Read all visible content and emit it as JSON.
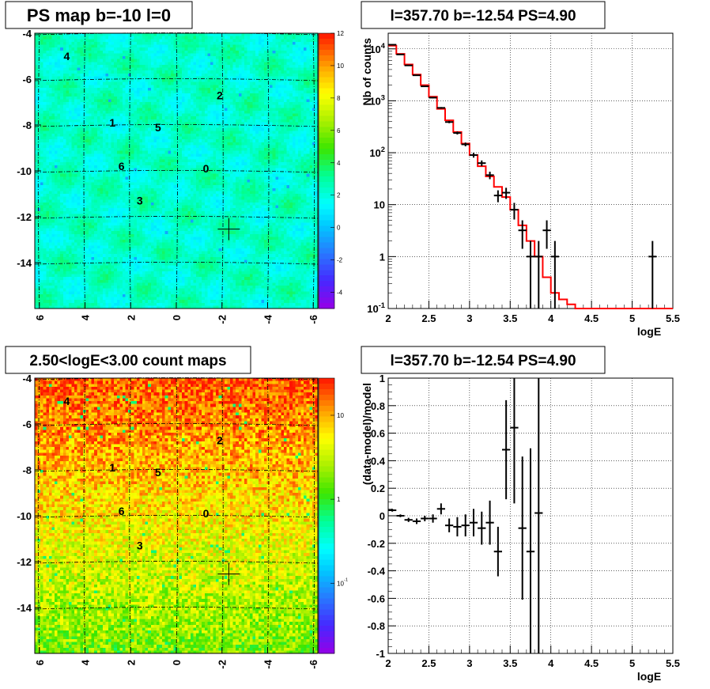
{
  "chart_data": [
    {
      "id": "ps-map",
      "type": "heatmap",
      "title": "PS map b=-10 l=0",
      "x_ticks": [
        "6",
        "4",
        "2",
        "0",
        "-2",
        "-4",
        "-6"
      ],
      "y_ticks": [
        "-4",
        "-6",
        "-8",
        "-10",
        "-12",
        "-14"
      ],
      "xlim": [
        6.2,
        -6.2
      ],
      "ylim": [
        -16,
        -4
      ],
      "colorbar_ticks": [
        "12",
        "10",
        "8",
        "6",
        "4",
        "2",
        "0",
        "-2",
        "-4"
      ],
      "colorbar_range": [
        -5,
        12
      ],
      "sources": [
        {
          "label": "4",
          "l": 4.8,
          "b": -5.0
        },
        {
          "label": "2",
          "l": -1.9,
          "b": -6.7
        },
        {
          "label": "1",
          "l": 2.8,
          "b": -7.9
        },
        {
          "label": "5",
          "l": 0.8,
          "b": -8.1
        },
        {
          "label": "6",
          "l": 2.4,
          "b": -9.8
        },
        {
          "label": "0",
          "l": -1.3,
          "b": -9.9
        },
        {
          "label": "3",
          "l": 1.6,
          "b": -11.3
        }
      ],
      "marker": {
        "l": -2.3,
        "b": -12.54
      }
    },
    {
      "id": "count-spectrum",
      "type": "line",
      "title": "l=357.70 b=-12.54 PS=4.90",
      "xlabel": "logE",
      "ylabel": "Nb of counts",
      "xlim": [
        2.0,
        5.5
      ],
      "ylim": [
        0.1,
        20000
      ],
      "log_y": true,
      "x_ticks": [
        "2",
        "2.5",
        "3",
        "3.5",
        "4",
        "4.5",
        "5",
        "5.5"
      ],
      "y_ticks": [
        "10^{-1}",
        "1",
        "10",
        "10^{2}",
        "10^{3}",
        "10^{4}"
      ],
      "grid": true,
      "series": [
        {
          "kind": "model-histogram",
          "color": "#ff0000",
          "bin_width": 0.1,
          "x": [
            2.0,
            2.1,
            2.2,
            2.3,
            2.4,
            2.5,
            2.6,
            2.7,
            2.8,
            2.9,
            3.0,
            3.1,
            3.2,
            3.3,
            3.4,
            3.5,
            3.6,
            3.7,
            3.8,
            3.9,
            4.0,
            4.1,
            4.2,
            4.3,
            4.4,
            4.5,
            4.6,
            4.7,
            4.8,
            4.9,
            5.0,
            5.1,
            5.2,
            5.3,
            5.4
          ],
          "values": [
            11500,
            8000,
            5000,
            3200,
            2000,
            1200,
            700,
            420,
            250,
            150,
            90,
            55,
            35,
            22,
            14,
            8,
            4,
            2,
            1,
            0.4,
            0.2,
            0.15,
            0.12,
            0.1,
            0.1,
            0.1,
            0.1,
            0.1,
            0.1,
            0.1,
            0.1,
            0.1,
            0.1,
            0.1,
            0.1
          ]
        },
        {
          "kind": "data-points",
          "color": "#000000",
          "x": [
            2.05,
            2.15,
            2.25,
            2.35,
            2.45,
            2.55,
            2.65,
            2.75,
            2.85,
            2.95,
            3.05,
            3.15,
            3.25,
            3.35,
            3.45,
            3.55,
            3.65,
            3.75,
            3.85,
            3.95,
            4.05,
            5.25
          ],
          "values": [
            12000,
            7800,
            4800,
            3100,
            1900,
            1150,
            730,
            390,
            240,
            145,
            90,
            63,
            37,
            15,
            17,
            8,
            3.2,
            1,
            1,
            3.2,
            1,
            1
          ]
        }
      ]
    },
    {
      "id": "count-map",
      "type": "heatmap",
      "title": "2.50<logE<3.00 count maps",
      "x_ticks": [
        "6",
        "4",
        "2",
        "0",
        "-2",
        "-4",
        "-6"
      ],
      "y_ticks": [
        "-4",
        "-6",
        "-8",
        "-10",
        "-12",
        "-14"
      ],
      "xlim": [
        6.2,
        -6.2
      ],
      "ylim": [
        -16,
        -4
      ],
      "log_color": true,
      "colorbar_ticks": [
        "10",
        "1",
        "10^{-1}"
      ],
      "sources": [
        {
          "label": "4",
          "l": 4.8,
          "b": -5.0
        },
        {
          "label": "2",
          "l": -1.9,
          "b": -6.7
        },
        {
          "label": "1",
          "l": 2.8,
          "b": -7.9
        },
        {
          "label": "5",
          "l": 0.8,
          "b": -8.1
        },
        {
          "label": "6",
          "l": 2.4,
          "b": -9.8
        },
        {
          "label": "0",
          "l": -1.3,
          "b": -9.9
        },
        {
          "label": "3",
          "l": 1.6,
          "b": -11.3
        }
      ],
      "marker": {
        "l": -2.3,
        "b": -12.54
      }
    },
    {
      "id": "residuals",
      "type": "scatter",
      "title": "l=357.70 b=-12.54 PS=4.90",
      "xlabel": "logE",
      "ylabel": "(data-model)/model",
      "xlim": [
        2.0,
        5.5
      ],
      "ylim": [
        -1,
        1
      ],
      "x_ticks": [
        "2",
        "2.5",
        "3",
        "3.5",
        "4",
        "4.5",
        "5",
        "5.5"
      ],
      "y_ticks": [
        "-1",
        "-0.8",
        "-0.6",
        "-0.4",
        "-0.2",
        "0",
        "0.2",
        "0.4",
        "0.6",
        "0.8",
        "1"
      ],
      "grid": true,
      "points": {
        "x": [
          2.05,
          2.15,
          2.25,
          2.35,
          2.45,
          2.55,
          2.65,
          2.75,
          2.85,
          2.95,
          3.05,
          3.15,
          3.25,
          3.35,
          3.45,
          3.55,
          3.65,
          3.75,
          3.85
        ],
        "y": [
          0.04,
          0.0,
          -0.03,
          -0.04,
          -0.02,
          -0.02,
          0.05,
          -0.07,
          -0.08,
          -0.07,
          -0.05,
          -0.09,
          -0.05,
          -0.26,
          0.48,
          0.64,
          -0.09,
          -0.26,
          0.02
        ],
        "err": [
          0.01,
          0.01,
          0.015,
          0.02,
          0.02,
          0.03,
          0.04,
          0.05,
          0.07,
          0.08,
          0.1,
          0.12,
          0.16,
          0.18,
          0.36,
          0.55,
          0.52,
          0.75,
          1.1
        ]
      }
    }
  ]
}
